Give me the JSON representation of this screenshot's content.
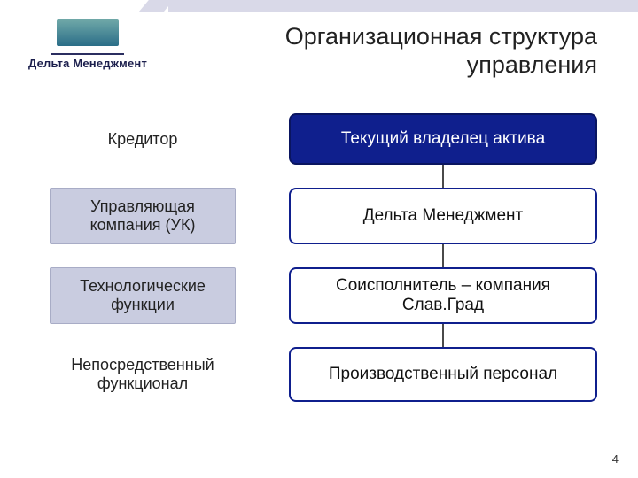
{
  "logo": {
    "name": "Дельта Менеджмент",
    "sub": ""
  },
  "title_line1": "Организационная структура",
  "title_line2": "управления",
  "rows": [
    {
      "left": "Кредитор",
      "right": "Текущий владелец актива",
      "filled": true,
      "left_shaded": false
    },
    {
      "left": "Управляющая компания (УК)",
      "right": "Дельта Менеджмент",
      "filled": false,
      "left_shaded": true
    },
    {
      "left": "Технологические функции",
      "right": "Соисполнитель – компания Слав.Град",
      "filled": false,
      "left_shaded": true
    },
    {
      "left": "Непосредственный функционал",
      "right": "Производственный персонал",
      "filled": false,
      "left_shaded": false
    }
  ],
  "page_number": "4",
  "colors": {
    "accent_fill": "#0f1f8d",
    "accent_border": "#0a1560",
    "left_shade": "#c9cce0",
    "top_band": "#d9d9e8",
    "connector": "#4a4a4a"
  }
}
